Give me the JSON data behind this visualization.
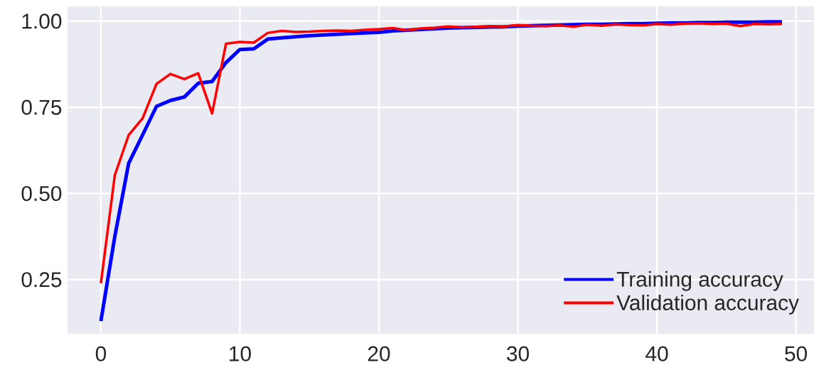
{
  "chart_data": {
    "type": "line",
    "x": [
      0,
      1,
      2,
      3,
      4,
      5,
      6,
      7,
      8,
      9,
      10,
      11,
      12,
      13,
      14,
      15,
      16,
      17,
      18,
      19,
      20,
      21,
      22,
      23,
      24,
      25,
      26,
      27,
      28,
      29,
      30,
      31,
      32,
      33,
      34,
      35,
      36,
      37,
      38,
      39,
      40,
      41,
      42,
      43,
      44,
      45,
      46,
      47,
      48,
      49
    ],
    "series": [
      {
        "name": "Training accuracy",
        "color": "#0000ff",
        "values": [
          0.13,
          0.375,
          0.588,
          0.67,
          0.753,
          0.77,
          0.78,
          0.82,
          0.825,
          0.88,
          0.918,
          0.92,
          0.948,
          0.952,
          0.955,
          0.958,
          0.96,
          0.962,
          0.964,
          0.966,
          0.968,
          0.972,
          0.974,
          0.976,
          0.978,
          0.98,
          0.981,
          0.982,
          0.983,
          0.984,
          0.986,
          0.987,
          0.988,
          0.989,
          0.99,
          0.991,
          0.991,
          0.992,
          0.993,
          0.993,
          0.994,
          0.995,
          0.995,
          0.996,
          0.996,
          0.997,
          0.997,
          0.997,
          0.998,
          0.998
        ]
      },
      {
        "name": "Validation accuracy",
        "color": "#ff0000",
        "values": [
          0.24,
          0.553,
          0.67,
          0.718,
          0.818,
          0.847,
          0.832,
          0.849,
          0.732,
          0.935,
          0.94,
          0.938,
          0.966,
          0.972,
          0.969,
          0.97,
          0.972,
          0.973,
          0.972,
          0.975,
          0.977,
          0.98,
          0.974,
          0.979,
          0.981,
          0.985,
          0.982,
          0.984,
          0.986,
          0.985,
          0.989,
          0.987,
          0.986,
          0.988,
          0.984,
          0.99,
          0.987,
          0.991,
          0.989,
          0.988,
          0.992,
          0.99,
          0.993,
          0.994,
          0.992,
          0.993,
          0.986,
          0.992,
          0.991,
          0.992
        ]
      }
    ],
    "xlim": [
      -2.4,
      51.3
    ],
    "ylim": [
      0.093,
      1.043
    ],
    "xticks": [
      0,
      10,
      20,
      30,
      40,
      50
    ],
    "yticks": [
      0.25,
      {
        "value": 0.5,
        "label": "0.50"
      },
      0.75,
      {
        "value": 1.0,
        "label": "1.00"
      }
    ],
    "grid": true,
    "legend": "bottom right"
  }
}
